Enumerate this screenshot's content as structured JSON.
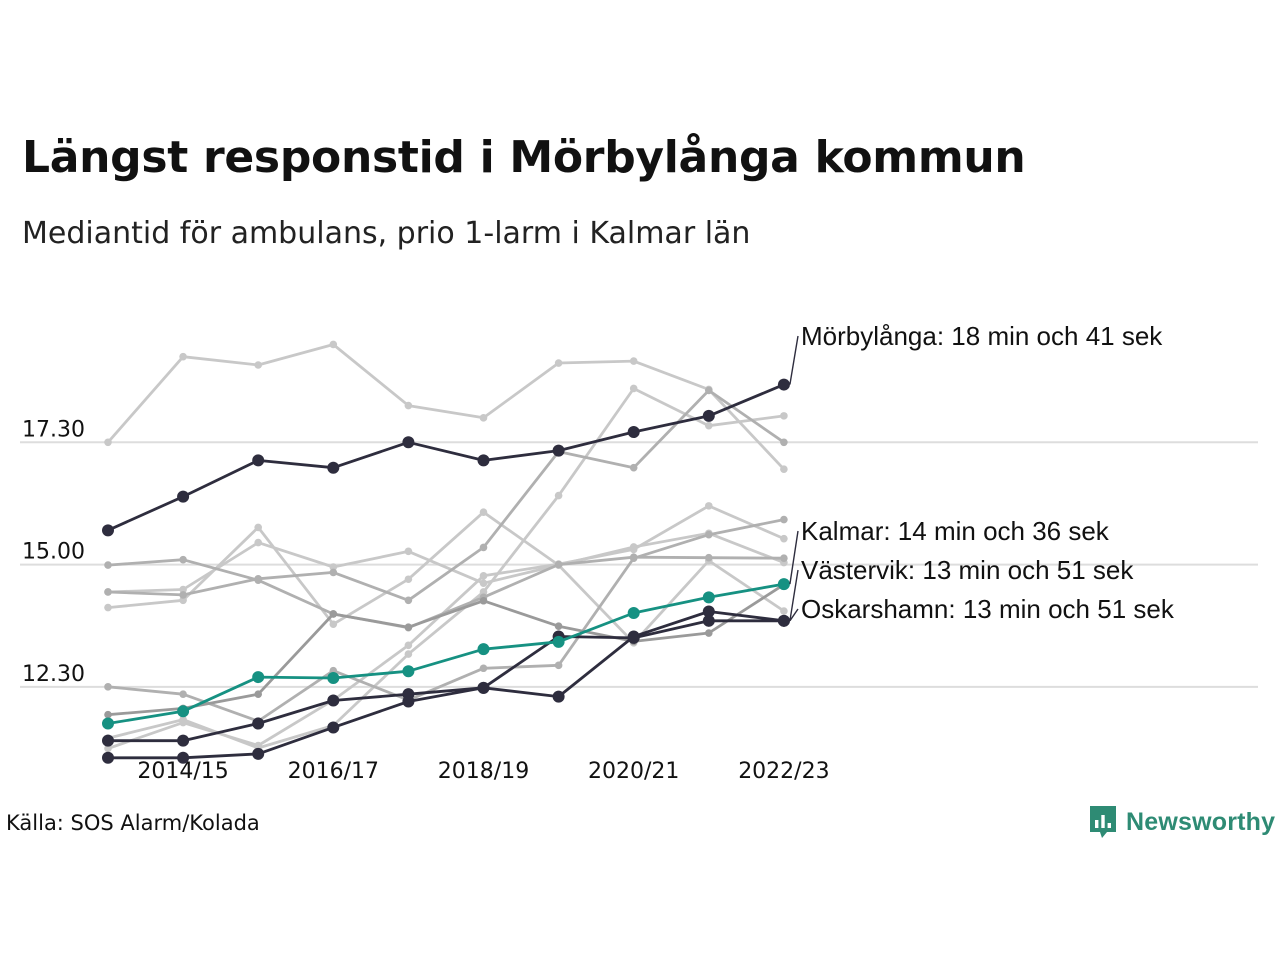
{
  "title": "Längst responstid i Mörbylånga kommun",
  "subtitle": "Mediantid för ambulans, prio 1-larm i Kalmar län",
  "source": "Källa: SOS Alarm/Kolada",
  "brand": {
    "name": "Newsworthy",
    "icon": "newsworthy-logo-icon",
    "color": "#2e8b74"
  },
  "colors": {
    "highlight": "#2e2d3e",
    "kalmar": "#169182",
    "background_gray_1": "#c8c8c8",
    "background_gray_2": "#b0b0b0",
    "background_gray_3": "#9a9a9a",
    "grid": "#dddddd"
  },
  "chart_data": {
    "type": "line",
    "x": [
      "2013/14",
      "2014/15",
      "2015/16",
      "2016/17",
      "2017/18",
      "2018/19",
      "2019/20",
      "2020/21",
      "2021/22",
      "2022/23"
    ],
    "xticks": [
      "2014/15",
      "2016/17",
      "2018/19",
      "2020/21",
      "2022/23"
    ],
    "yticks": [
      12.5,
      15.0,
      17.5
    ],
    "ytick_labels": [
      "12.30",
      "15.00",
      "17.30"
    ],
    "ylim": [
      10.8,
      20.0
    ],
    "grid": true,
    "highlighted": [
      {
        "name": "Mörbylånga",
        "label": "Mörbylånga: 18 min och 41 sek",
        "color": "#2e2d3e",
        "values": [
          15.7,
          16.39,
          17.13,
          16.98,
          17.5,
          17.13,
          17.33,
          17.71,
          18.04,
          18.68
        ]
      },
      {
        "name": "Kalmar",
        "label": "Kalmar: 14 min och 36 sek",
        "color": "#169182",
        "values": [
          11.75,
          12.0,
          12.7,
          12.68,
          12.82,
          13.27,
          13.42,
          14.01,
          14.33,
          14.6
        ]
      },
      {
        "name": "Västervik",
        "label": "Västervik: 13 min och 51 sek",
        "color": "#2e2d3e",
        "values": [
          11.4,
          11.4,
          11.75,
          12.22,
          12.35,
          12.48,
          12.3,
          13.53,
          14.04,
          13.85
        ]
      },
      {
        "name": "Oskarshamn",
        "label": "Oskarshamn: 13 min och 51 sek",
        "color": "#2e2d3e",
        "values": [
          11.05,
          11.05,
          11.13,
          11.67,
          12.2,
          12.48,
          13.53,
          13.5,
          13.85,
          13.85
        ]
      }
    ],
    "other_series": [
      {
        "color": "#c8c8c8",
        "values": [
          17.5,
          19.25,
          19.08,
          19.5,
          18.25,
          18.0,
          19.12,
          19.16,
          18.58,
          16.95
        ]
      },
      {
        "color": "#c8c8c8",
        "values": [
          14.44,
          14.49,
          15.45,
          14.95,
          15.27,
          14.62,
          14.99,
          15.36,
          15.64,
          15.04
        ]
      },
      {
        "color": "#c8c8c8",
        "values": [
          14.12,
          14.27,
          15.76,
          13.78,
          14.7,
          16.07,
          14.99,
          13.4,
          15.08,
          14.05
        ]
      },
      {
        "color": "#c8c8c8",
        "values": [
          11.45,
          11.83,
          11.25,
          11.71,
          13.17,
          14.44,
          16.41,
          18.6,
          17.84,
          18.04
        ]
      },
      {
        "color": "#c8c8c8",
        "values": [
          11.24,
          11.77,
          11.3,
          12.23,
          13.35,
          14.77,
          15.01,
          15.31,
          16.2,
          15.53
        ]
      },
      {
        "color": "#b0b0b0",
        "values": [
          14.44,
          14.38,
          14.71,
          14.84,
          14.27,
          15.35,
          17.31,
          16.98,
          18.56,
          17.5
        ]
      },
      {
        "color": "#b0b0b0",
        "values": [
          12.5,
          12.35,
          11.8,
          12.83,
          12.23,
          12.88,
          12.94,
          15.13,
          15.61,
          15.92
        ]
      },
      {
        "color": "#b0b0b0",
        "values": [
          14.99,
          15.1,
          14.68,
          13.99,
          13.71,
          14.33,
          15.0,
          15.15,
          15.14,
          15.13
        ]
      },
      {
        "color": "#9a9a9a",
        "values": [
          11.93,
          12.06,
          12.35,
          13.99,
          13.72,
          14.26,
          13.74,
          13.43,
          13.6,
          14.59
        ]
      }
    ]
  }
}
